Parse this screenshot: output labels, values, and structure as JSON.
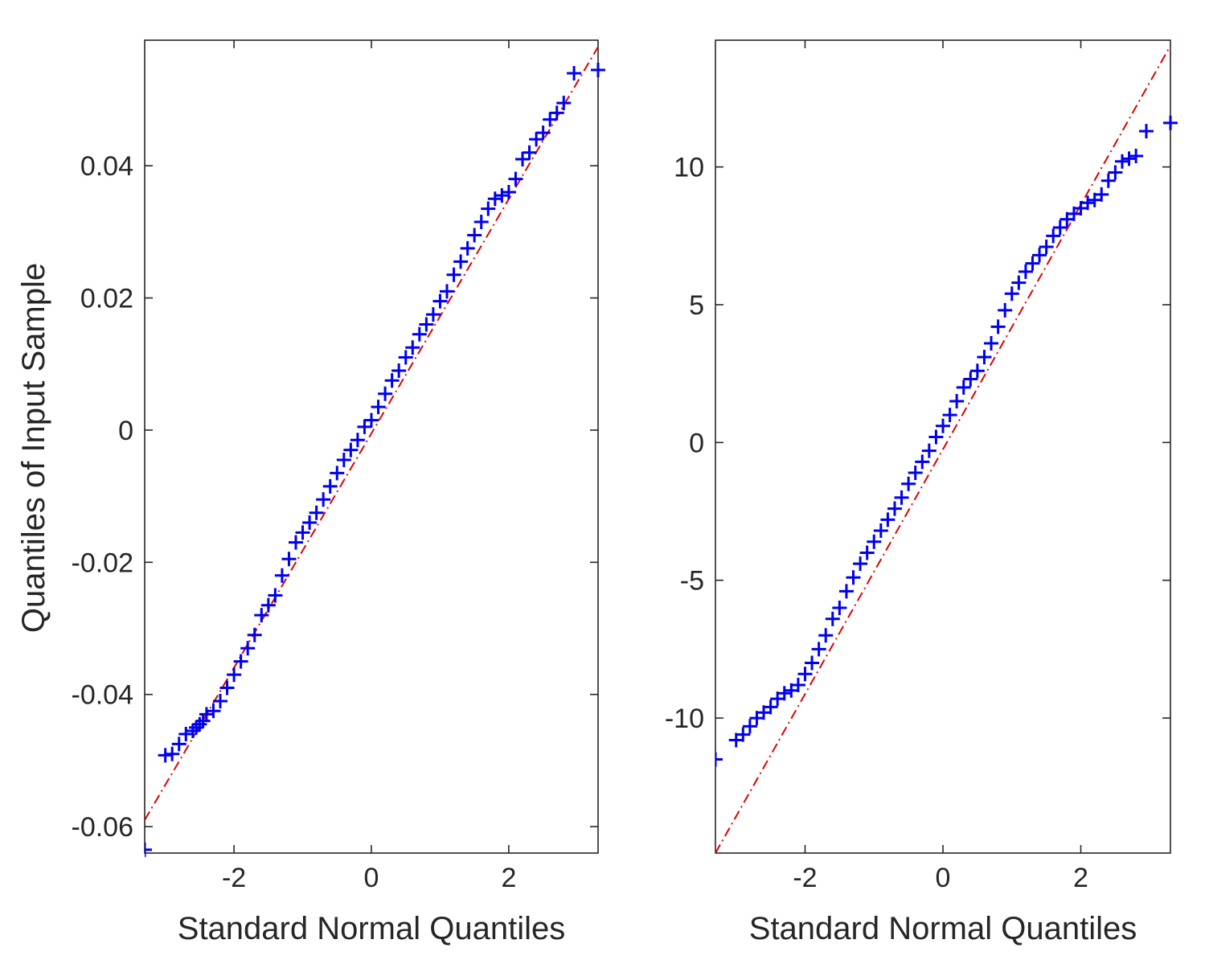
{
  "chart_data": [
    {
      "type": "scatter",
      "title": "",
      "xlabel": "Standard Normal Quantiles",
      "ylabel": "Quantiles of Input Sample",
      "xlim": [
        -3.3,
        3.3
      ],
      "ylim": [
        -0.064,
        0.059
      ],
      "xticks": [
        -2,
        0,
        2
      ],
      "xtick_labels": [
        "-2",
        "0",
        "2"
      ],
      "yticks": [
        -0.06,
        -0.04,
        -0.02,
        0,
        0.02,
        0.04
      ],
      "ytick_labels": [
        "-0.06",
        "-0.04",
        "-0.02",
        "0",
        "0.02",
        "0.04"
      ],
      "grid": false,
      "colors": {
        "points": "#0000ee",
        "reference_line": "#e00000"
      },
      "reference_line": {
        "x": [
          -3.3,
          3.3
        ],
        "y": [
          -0.059,
          0.058
        ]
      },
      "series": [
        {
          "marker": "+",
          "x": [
            -3.3,
            -3.0,
            -2.9,
            -2.8,
            -2.7,
            -2.6,
            -2.55,
            -2.5,
            -2.45,
            -2.4,
            -2.3,
            -2.2,
            -2.1,
            -2.0,
            -1.9,
            -1.8,
            -1.7,
            -1.6,
            -1.5,
            -1.4,
            -1.3,
            -1.2,
            -1.1,
            -1.0,
            -0.9,
            -0.8,
            -0.7,
            -0.6,
            -0.5,
            -0.4,
            -0.3,
            -0.2,
            -0.1,
            0.0,
            0.1,
            0.2,
            0.3,
            0.4,
            0.5,
            0.6,
            0.7,
            0.8,
            0.9,
            1.0,
            1.1,
            1.2,
            1.3,
            1.4,
            1.5,
            1.6,
            1.7,
            1.8,
            1.9,
            2.0,
            2.1,
            2.2,
            2.3,
            2.4,
            2.5,
            2.6,
            2.7,
            2.8,
            2.95,
            3.3
          ],
          "y": [
            -0.0635,
            -0.0492,
            -0.049,
            -0.0475,
            -0.046,
            -0.0455,
            -0.045,
            -0.0445,
            -0.044,
            -0.043,
            -0.0425,
            -0.041,
            -0.039,
            -0.037,
            -0.035,
            -0.033,
            -0.031,
            -0.028,
            -0.0265,
            -0.025,
            -0.022,
            -0.0195,
            -0.017,
            -0.0155,
            -0.014,
            -0.0125,
            -0.0105,
            -0.0085,
            -0.0065,
            -0.0045,
            -0.003,
            -0.0015,
            0.0005,
            0.0015,
            0.0035,
            0.0055,
            0.0075,
            0.009,
            0.011,
            0.0125,
            0.0145,
            0.016,
            0.0175,
            0.0195,
            0.021,
            0.0235,
            0.0255,
            0.0275,
            0.0295,
            0.0315,
            0.0335,
            0.035,
            0.0355,
            0.036,
            0.038,
            0.041,
            0.042,
            0.044,
            0.045,
            0.047,
            0.048,
            0.0495,
            0.054,
            0.0545
          ]
        }
      ]
    },
    {
      "type": "scatter",
      "title": "",
      "xlabel": "Standard Normal Quantiles",
      "ylabel": "",
      "xlim": [
        -3.3,
        3.3
      ],
      "ylim": [
        -14.9,
        14.6
      ],
      "xticks": [
        -2,
        0,
        2
      ],
      "xtick_labels": [
        "-2",
        "0",
        "2"
      ],
      "yticks": [
        -10,
        -5,
        0,
        5,
        10
      ],
      "ytick_labels": [
        "-10",
        "-5",
        "0",
        "5",
        "10"
      ],
      "grid": false,
      "colors": {
        "points": "#0000ee",
        "reference_line": "#e00000"
      },
      "reference_line": {
        "x": [
          -3.3,
          3.3
        ],
        "y": [
          -14.9,
          14.4
        ]
      },
      "series": [
        {
          "marker": "+",
          "x": [
            -3.3,
            -3.0,
            -2.9,
            -2.8,
            -2.7,
            -2.6,
            -2.5,
            -2.4,
            -2.3,
            -2.2,
            -2.1,
            -2.0,
            -1.9,
            -1.8,
            -1.7,
            -1.6,
            -1.5,
            -1.4,
            -1.3,
            -1.2,
            -1.1,
            -1.0,
            -0.9,
            -0.8,
            -0.7,
            -0.6,
            -0.5,
            -0.4,
            -0.3,
            -0.2,
            -0.1,
            0.0,
            0.1,
            0.2,
            0.3,
            0.4,
            0.5,
            0.6,
            0.7,
            0.8,
            0.9,
            1.0,
            1.1,
            1.2,
            1.3,
            1.4,
            1.5,
            1.6,
            1.7,
            1.8,
            1.9,
            2.0,
            2.1,
            2.2,
            2.3,
            2.4,
            2.5,
            2.6,
            2.7,
            2.8,
            2.95,
            3.3
          ],
          "y": [
            -11.5,
            -10.8,
            -10.6,
            -10.3,
            -10.0,
            -9.8,
            -9.6,
            -9.3,
            -9.1,
            -9.0,
            -8.8,
            -8.4,
            -8.0,
            -7.5,
            -7.0,
            -6.4,
            -6.0,
            -5.4,
            -4.9,
            -4.4,
            -4.0,
            -3.6,
            -3.2,
            -2.8,
            -2.4,
            -2.0,
            -1.5,
            -1.1,
            -0.7,
            -0.3,
            0.2,
            0.6,
            1.0,
            1.5,
            2.0,
            2.3,
            2.6,
            3.1,
            3.6,
            4.2,
            4.8,
            5.4,
            5.8,
            6.2,
            6.5,
            6.8,
            7.1,
            7.5,
            7.8,
            8.1,
            8.3,
            8.5,
            8.7,
            8.8,
            9.0,
            9.5,
            9.8,
            10.2,
            10.3,
            10.4,
            11.3,
            11.6
          ]
        }
      ]
    }
  ]
}
